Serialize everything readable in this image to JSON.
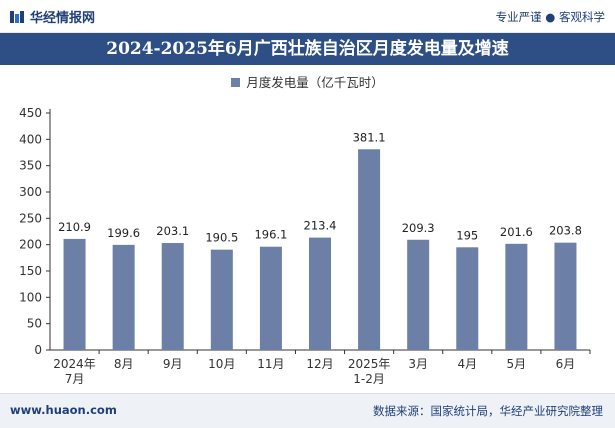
{
  "header": {
    "brand": "华经情报网",
    "tagline": "专业严谨 ● 客观科学"
  },
  "footer": {
    "website": "www.huaon.com",
    "source": "数据来源：国家统计局，华经产业研究院整理"
  },
  "colors": {
    "bar": "#6b7fa7",
    "title_bg": "#2d4f86",
    "brand": "#1f3f78"
  },
  "chart_data": {
    "type": "bar",
    "title": "2024-2025年6月广西壮族自治区月度发电量及增速",
    "legend": "月度发电量（亿千瓦时）",
    "legend_position": "top",
    "categories": [
      [
        "2024年",
        "7月"
      ],
      [
        "8月"
      ],
      [
        "9月"
      ],
      [
        "10月"
      ],
      [
        "11月"
      ],
      [
        "12月"
      ],
      [
        "2025年",
        "1-2月"
      ],
      [
        "3月"
      ],
      [
        "4月"
      ],
      [
        "5月"
      ],
      [
        "6月"
      ]
    ],
    "values": [
      210.9,
      199.6,
      203.1,
      190.5,
      196.1,
      213.4,
      381.1,
      209.3,
      195,
      201.6,
      203.8
    ],
    "value_labels": [
      "210.9",
      "199.6",
      "203.1",
      "190.5",
      "196.1",
      "213.4",
      "381.1",
      "209.3",
      "195",
      "201.6",
      "203.8"
    ],
    "yticks": [
      0,
      50,
      100,
      150,
      200,
      250,
      300,
      350,
      400,
      450
    ],
    "ylim": [
      0,
      450
    ],
    "grid": false
  }
}
